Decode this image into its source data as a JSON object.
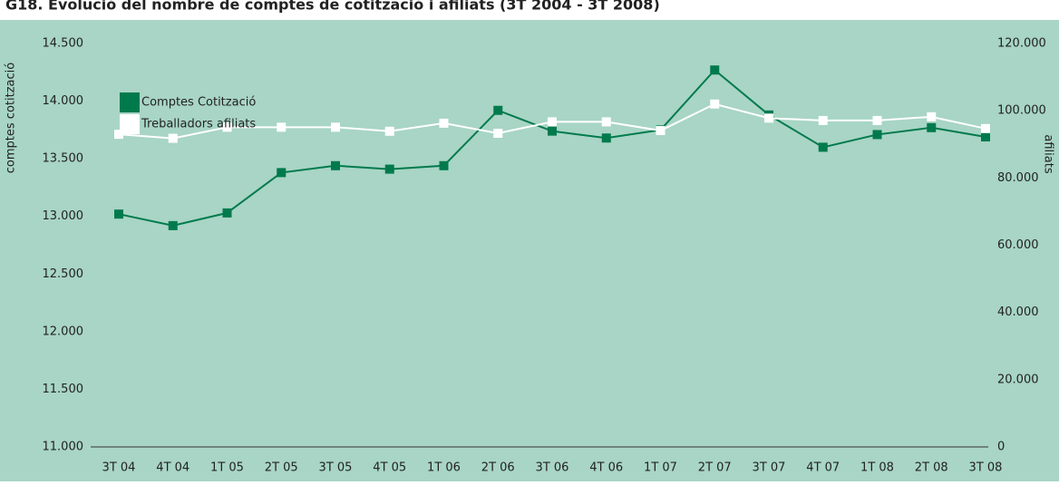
{
  "chart_data": {
    "type": "line",
    "title": "G18. Evolució del nombre de comptes de cotització i afiliats (3T 2004 - 3T 2008)",
    "ylabel": "comptes cotització",
    "y2label": "afiliats",
    "categories": [
      "3T 04",
      "4T 04",
      "1T 05",
      "2T 05",
      "3T 05",
      "4T 05",
      "1T 06",
      "2T 06",
      "3T 06",
      "4T 06",
      "1T 07",
      "2T 07",
      "3T 07",
      "4T 07",
      "1T 08",
      "2T 08",
      "3T 08"
    ],
    "series": [
      {
        "name": "Comptes Cotització",
        "color": "#007a4d",
        "marker": "square",
        "values": [
          13020,
          12920,
          13030,
          13380,
          13440,
          13410,
          13440,
          13920,
          13740,
          13680,
          13750,
          14270,
          13880,
          13600,
          13710,
          13770,
          13690
        ]
      },
      {
        "name": "Treballadors afiliats",
        "color": "#ffffff",
        "marker": "square",
        "axis": "y2",
        "values": [
          93000,
          91800,
          95100,
          95100,
          95100,
          93900,
          96300,
          93300,
          96700,
          96700,
          94100,
          102000,
          97800,
          97100,
          97100,
          98200,
          94700
        ]
      }
    ],
    "ylim": [
      11000,
      14500
    ],
    "yticks": [
      {
        "value": 11000,
        "label": "11.000"
      },
      {
        "value": 11500,
        "label": "11.500"
      },
      {
        "value": 12000,
        "label": "12.000"
      },
      {
        "value": 12500,
        "label": "12.500"
      },
      {
        "value": 13000,
        "label": "13.000"
      },
      {
        "value": 13500,
        "label": "13.500"
      },
      {
        "value": 14000,
        "label": "14.000"
      },
      {
        "value": 14500,
        "label": "14.500"
      }
    ],
    "y2lim": [
      0,
      120000
    ],
    "y2ticks": [
      0,
      {
        "value": 20000,
        "label": "20.000"
      },
      {
        "value": 40000,
        "label": "40.000"
      },
      {
        "value": 60000,
        "label": "60.000"
      },
      {
        "value": 80000,
        "label": "80.000"
      },
      {
        "value": 100000,
        "label": "100.000"
      },
      {
        "value": 120000,
        "label": "120.000"
      }
    ],
    "legend": "upper left",
    "background": "#a8d5c5"
  }
}
